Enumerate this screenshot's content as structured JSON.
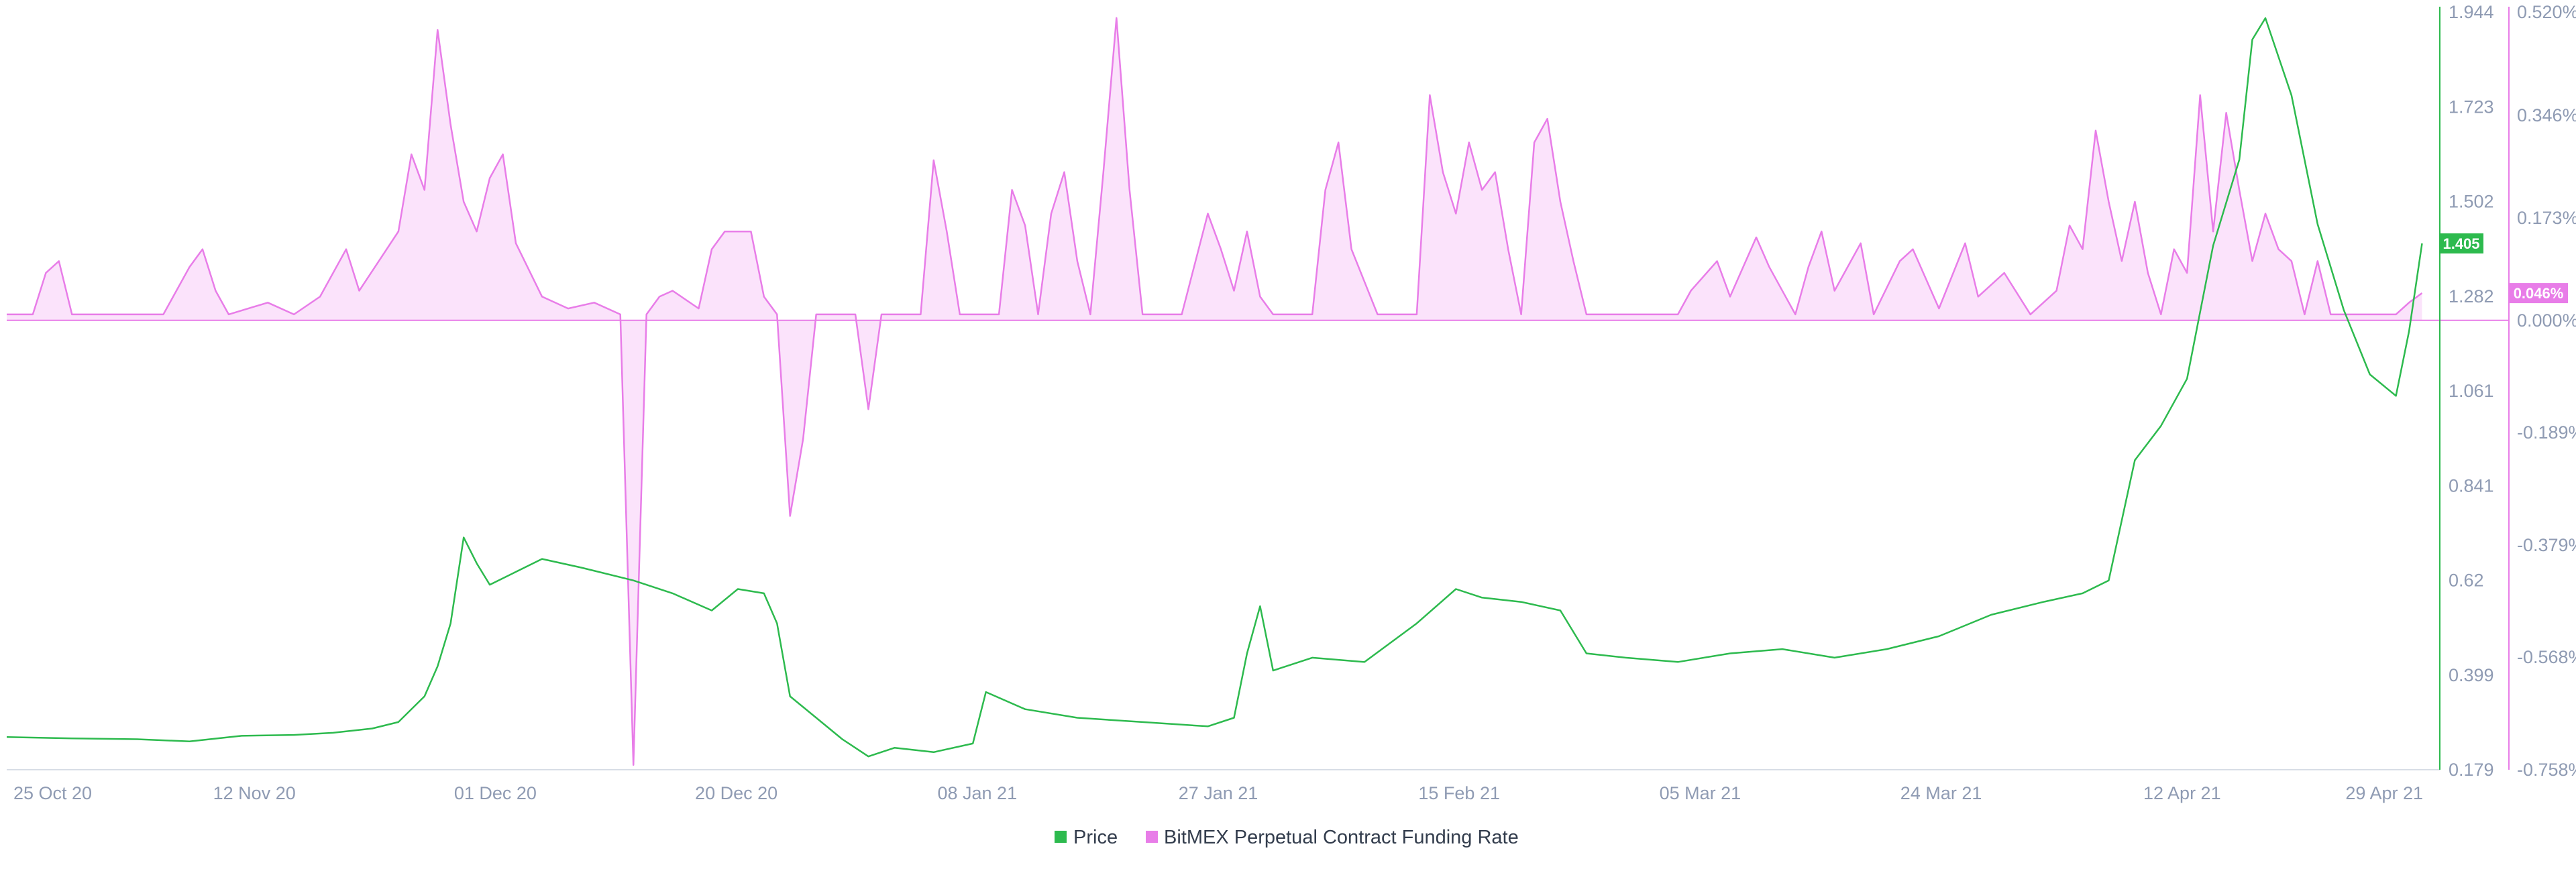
{
  "chart_data": {
    "type": "line",
    "title": "",
    "x_ticks": [
      "25 Oct 20",
      "12 Nov 20",
      "01 Dec 20",
      "20 Dec 20",
      "08 Jan 21",
      "27 Jan 21",
      "15 Feb 21",
      "05 Mar 21",
      "24 Mar 21",
      "12 Apr 21",
      "29 Apr 21"
    ],
    "x_range": [
      "2020-10-25",
      "2021-04-29"
    ],
    "left_axis": {
      "ticks": [
        "1.944",
        "1.723",
        "1.502",
        "1.282",
        "1.061",
        "0.841",
        "0.62",
        "0.399",
        "0.179"
      ],
      "range": [
        0.179,
        1.944
      ],
      "current_value_label": "1.405",
      "color": "#2dba4e"
    },
    "right_axis": {
      "ticks": [
        "0.520%",
        "0.346%",
        "0.173%",
        "0.000%",
        "-0.189%",
        "-0.379%",
        "-0.568%",
        "-0.758%"
      ],
      "range": [
        -0.758,
        0.52
      ],
      "current_value_label": "0.046%",
      "color": "#e87de8"
    },
    "series": [
      {
        "name": "Price",
        "color": "#2dba4e",
        "axis": "left",
        "points": [
          [
            "2020-10-25",
            0.255
          ],
          [
            "2020-10-30",
            0.252
          ],
          [
            "2020-11-04",
            0.25
          ],
          [
            "2020-11-08",
            0.245
          ],
          [
            "2020-11-12",
            0.258
          ],
          [
            "2020-11-16",
            0.26
          ],
          [
            "2020-11-19",
            0.265
          ],
          [
            "2020-11-22",
            0.275
          ],
          [
            "2020-11-24",
            0.29
          ],
          [
            "2020-11-26",
            0.35
          ],
          [
            "2020-11-27",
            0.42
          ],
          [
            "2020-11-28",
            0.52
          ],
          [
            "2020-11-29",
            0.72
          ],
          [
            "2020-11-30",
            0.66
          ],
          [
            "2020-12-01",
            0.61
          ],
          [
            "2020-12-03",
            0.64
          ],
          [
            "2020-12-05",
            0.67
          ],
          [
            "2020-12-08",
            0.65
          ],
          [
            "2020-12-12",
            0.62
          ],
          [
            "2020-12-15",
            0.59
          ],
          [
            "2020-12-18",
            0.55
          ],
          [
            "2020-12-20",
            0.6
          ],
          [
            "2020-12-22",
            0.59
          ],
          [
            "2020-12-23",
            0.52
          ],
          [
            "2020-12-24",
            0.35
          ],
          [
            "2020-12-26",
            0.3
          ],
          [
            "2020-12-28",
            0.25
          ],
          [
            "2020-12-30",
            0.21
          ],
          [
            "2021-01-01",
            0.23
          ],
          [
            "2021-01-04",
            0.22
          ],
          [
            "2021-01-07",
            0.24
          ],
          [
            "2021-01-08",
            0.36
          ],
          [
            "2021-01-11",
            0.32
          ],
          [
            "2021-01-15",
            0.3
          ],
          [
            "2021-01-20",
            0.29
          ],
          [
            "2021-01-25",
            0.28
          ],
          [
            "2021-01-27",
            0.3
          ],
          [
            "2021-01-28",
            0.45
          ],
          [
            "2021-01-29",
            0.56
          ],
          [
            "2021-01-30",
            0.41
          ],
          [
            "2021-02-02",
            0.44
          ],
          [
            "2021-02-06",
            0.43
          ],
          [
            "2021-02-10",
            0.52
          ],
          [
            "2021-02-13",
            0.6
          ],
          [
            "2021-02-15",
            0.58
          ],
          [
            "2021-02-18",
            0.57
          ],
          [
            "2021-02-21",
            0.55
          ],
          [
            "2021-02-23",
            0.45
          ],
          [
            "2021-02-26",
            0.44
          ],
          [
            "2021-03-02",
            0.43
          ],
          [
            "2021-03-06",
            0.45
          ],
          [
            "2021-03-10",
            0.46
          ],
          [
            "2021-03-14",
            0.44
          ],
          [
            "2021-03-18",
            0.46
          ],
          [
            "2021-03-22",
            0.49
          ],
          [
            "2021-03-26",
            0.54
          ],
          [
            "2021-03-30",
            0.57
          ],
          [
            "2021-04-02",
            0.59
          ],
          [
            "2021-04-04",
            0.62
          ],
          [
            "2021-04-06",
            0.9
          ],
          [
            "2021-04-08",
            0.98
          ],
          [
            "2021-04-10",
            1.09
          ],
          [
            "2021-04-12",
            1.4
          ],
          [
            "2021-04-14",
            1.6
          ],
          [
            "2021-04-15",
            1.88
          ],
          [
            "2021-04-16",
            1.93
          ],
          [
            "2021-04-18",
            1.75
          ],
          [
            "2021-04-20",
            1.45
          ],
          [
            "2021-04-22",
            1.25
          ],
          [
            "2021-04-24",
            1.1
          ],
          [
            "2021-04-26",
            1.05
          ],
          [
            "2021-04-27",
            1.2
          ],
          [
            "2021-04-28",
            1.405
          ]
        ]
      },
      {
        "name": "BitMEX Perpetual Contract Funding Rate",
        "color": "#e87de8",
        "fill": "#fbe3fb",
        "axis": "right",
        "points": [
          [
            "2020-10-25",
            0.01
          ],
          [
            "2020-10-27",
            0.01
          ],
          [
            "2020-10-28",
            0.08
          ],
          [
            "2020-10-29",
            0.1
          ],
          [
            "2020-10-30",
            0.01
          ],
          [
            "2020-11-06",
            0.01
          ],
          [
            "2020-11-08",
            0.09
          ],
          [
            "2020-11-09",
            0.12
          ],
          [
            "2020-11-10",
            0.05
          ],
          [
            "2020-11-11",
            0.01
          ],
          [
            "2020-11-14",
            0.03
          ],
          [
            "2020-11-16",
            0.01
          ],
          [
            "2020-11-18",
            0.04
          ],
          [
            "2020-11-20",
            0.12
          ],
          [
            "2020-11-21",
            0.05
          ],
          [
            "2020-11-24",
            0.15
          ],
          [
            "2020-11-25",
            0.28
          ],
          [
            "2020-11-26",
            0.22
          ],
          [
            "2020-11-27",
            0.49
          ],
          [
            "2020-11-28",
            0.33
          ],
          [
            "2020-11-29",
            0.2
          ],
          [
            "2020-11-30",
            0.15
          ],
          [
            "2020-12-01",
            0.24
          ],
          [
            "2020-12-02",
            0.28
          ],
          [
            "2020-12-03",
            0.13
          ],
          [
            "2020-12-05",
            0.04
          ],
          [
            "2020-12-07",
            0.02
          ],
          [
            "2020-12-09",
            0.03
          ],
          [
            "2020-12-11",
            0.01
          ],
          [
            "2020-12-12",
            -0.75
          ],
          [
            "2020-12-13",
            0.01
          ],
          [
            "2020-12-14",
            0.04
          ],
          [
            "2020-12-15",
            0.05
          ],
          [
            "2020-12-17",
            0.02
          ],
          [
            "2020-12-18",
            0.12
          ],
          [
            "2020-12-19",
            0.15
          ],
          [
            "2020-12-21",
            0.15
          ],
          [
            "2020-12-22",
            0.04
          ],
          [
            "2020-12-23",
            0.01
          ],
          [
            "2020-12-24",
            -0.33
          ],
          [
            "2020-12-25",
            -0.2
          ],
          [
            "2020-12-26",
            0.01
          ],
          [
            "2020-12-29",
            0.01
          ],
          [
            "2020-12-30",
            -0.15
          ],
          [
            "2020-12-31",
            0.01
          ],
          [
            "2021-01-03",
            0.01
          ],
          [
            "2021-01-04",
            0.27
          ],
          [
            "2021-01-05",
            0.15
          ],
          [
            "2021-01-06",
            0.01
          ],
          [
            "2021-01-09",
            0.01
          ],
          [
            "2021-01-10",
            0.22
          ],
          [
            "2021-01-11",
            0.16
          ],
          [
            "2021-01-12",
            0.01
          ],
          [
            "2021-01-13",
            0.18
          ],
          [
            "2021-01-14",
            0.25
          ],
          [
            "2021-01-15",
            0.1
          ],
          [
            "2021-01-16",
            0.01
          ],
          [
            "2021-01-17",
            0.25
          ],
          [
            "2021-01-18",
            0.51
          ],
          [
            "2021-01-19",
            0.22
          ],
          [
            "2021-01-20",
            0.01
          ],
          [
            "2021-01-23",
            0.01
          ],
          [
            "2021-01-25",
            0.18
          ],
          [
            "2021-01-26",
            0.12
          ],
          [
            "2021-01-27",
            0.05
          ],
          [
            "2021-01-28",
            0.15
          ],
          [
            "2021-01-29",
            0.04
          ],
          [
            "2021-01-30",
            0.01
          ],
          [
            "2021-02-02",
            0.01
          ],
          [
            "2021-02-03",
            0.22
          ],
          [
            "2021-02-04",
            0.3
          ],
          [
            "2021-02-05",
            0.12
          ],
          [
            "2021-02-07",
            0.01
          ],
          [
            "2021-02-10",
            0.01
          ],
          [
            "2021-02-11",
            0.38
          ],
          [
            "2021-02-12",
            0.25
          ],
          [
            "2021-02-13",
            0.18
          ],
          [
            "2021-02-14",
            0.3
          ],
          [
            "2021-02-15",
            0.22
          ],
          [
            "2021-02-16",
            0.25
          ],
          [
            "2021-02-17",
            0.12
          ],
          [
            "2021-02-18",
            0.01
          ],
          [
            "2021-02-19",
            0.3
          ],
          [
            "2021-02-20",
            0.34
          ],
          [
            "2021-02-21",
            0.2
          ],
          [
            "2021-02-22",
            0.1
          ],
          [
            "2021-02-23",
            0.01
          ],
          [
            "2021-03-02",
            0.01
          ],
          [
            "2021-03-03",
            0.05
          ],
          [
            "2021-03-05",
            0.1
          ],
          [
            "2021-03-06",
            0.04
          ],
          [
            "2021-03-08",
            0.14
          ],
          [
            "2021-03-09",
            0.09
          ],
          [
            "2021-03-11",
            0.01
          ],
          [
            "2021-03-12",
            0.09
          ],
          [
            "2021-03-13",
            0.15
          ],
          [
            "2021-03-14",
            0.05
          ],
          [
            "2021-03-16",
            0.13
          ],
          [
            "2021-03-17",
            0.01
          ],
          [
            "2021-03-19",
            0.1
          ],
          [
            "2021-03-20",
            0.12
          ],
          [
            "2021-03-22",
            0.02
          ],
          [
            "2021-03-24",
            0.13
          ],
          [
            "2021-03-25",
            0.04
          ],
          [
            "2021-03-27",
            0.08
          ],
          [
            "2021-03-29",
            0.01
          ],
          [
            "2021-03-31",
            0.05
          ],
          [
            "2021-04-01",
            0.16
          ],
          [
            "2021-04-02",
            0.12
          ],
          [
            "2021-04-03",
            0.32
          ],
          [
            "2021-04-04",
            0.2
          ],
          [
            "2021-04-05",
            0.1
          ],
          [
            "2021-04-06",
            0.2
          ],
          [
            "2021-04-07",
            0.08
          ],
          [
            "2021-04-08",
            0.01
          ],
          [
            "2021-04-09",
            0.12
          ],
          [
            "2021-04-10",
            0.08
          ],
          [
            "2021-04-11",
            0.38
          ],
          [
            "2021-04-12",
            0.15
          ],
          [
            "2021-04-13",
            0.35
          ],
          [
            "2021-04-14",
            0.22
          ],
          [
            "2021-04-15",
            0.1
          ],
          [
            "2021-04-16",
            0.18
          ],
          [
            "2021-04-17",
            0.12
          ],
          [
            "2021-04-18",
            0.1
          ],
          [
            "2021-04-19",
            0.01
          ],
          [
            "2021-04-20",
            0.1
          ],
          [
            "2021-04-21",
            0.01
          ],
          [
            "2021-04-24",
            0.01
          ],
          [
            "2021-04-26",
            0.01
          ],
          [
            "2021-04-27",
            0.03
          ],
          [
            "2021-04-28",
            0.046
          ]
        ]
      }
    ],
    "legend": {
      "placement": "bottom-center",
      "items": [
        "Price",
        "BitMEX Perpetual Contract Funding Rate"
      ]
    },
    "grid": false
  }
}
